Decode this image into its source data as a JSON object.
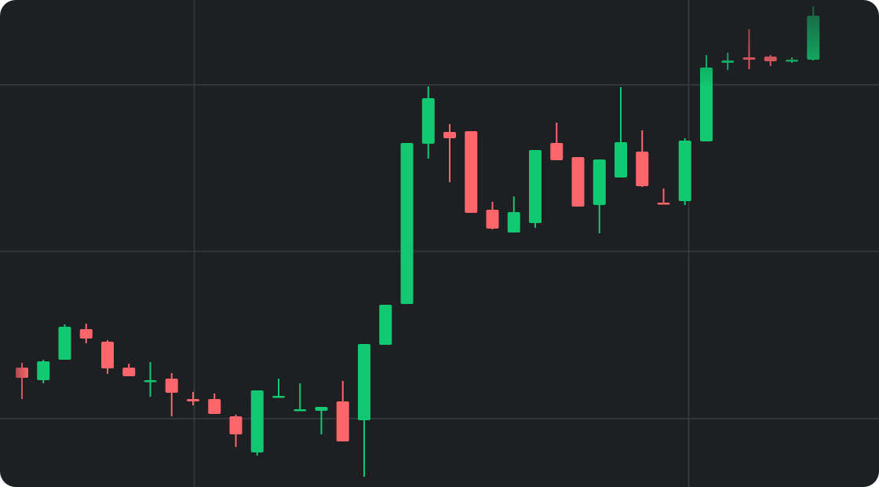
{
  "chart_data": {
    "type": "candlestick",
    "up_color": "#12c971",
    "down_color": "#ff666c",
    "grid": true,
    "ylim": [
      0,
      620
    ],
    "yticks": [
      87,
      300,
      512
    ],
    "open": [
      152,
      136,
      162,
      201,
      185,
      152,
      134,
      138,
      112,
      112,
      90,
      44,
      114,
      97,
      97,
      109,
      85,
      181,
      233,
      437,
      452,
      453,
      353,
      324,
      336,
      438,
      420,
      359,
      394,
      427,
      362,
      364,
      440,
      540,
      547,
      548,
      542,
      544
    ],
    "high": [
      158,
      162,
      207,
      208,
      187,
      157,
      159,
      145,
      121,
      119,
      92,
      123,
      138,
      132,
      102,
      135,
      182,
      232,
      438,
      510,
      462,
      453,
      363,
      370,
      429,
      464,
      420,
      417,
      509,
      454,
      380,
      444,
      550,
      553,
      583,
      550,
      547,
      612
    ],
    "low": [
      112,
      132,
      162,
      183,
      144,
      141,
      115,
      90,
      104,
      93,
      51,
      40,
      114,
      97,
      67,
      58,
      13,
      181,
      233,
      418,
      388,
      349,
      328,
      324,
      330,
      416,
      357,
      323,
      394,
      382,
      360,
      359,
      440,
      531,
      532,
      536,
      540,
      543
    ],
    "close": [
      139,
      160,
      204,
      189,
      151,
      141,
      136,
      120,
      109,
      93,
      67,
      123,
      116,
      99,
      102,
      58,
      182,
      232,
      438,
      495,
      444,
      349,
      329,
      350,
      429,
      416,
      357,
      417,
      439,
      383,
      360,
      441,
      534,
      543,
      544,
      542,
      544,
      600
    ]
  }
}
